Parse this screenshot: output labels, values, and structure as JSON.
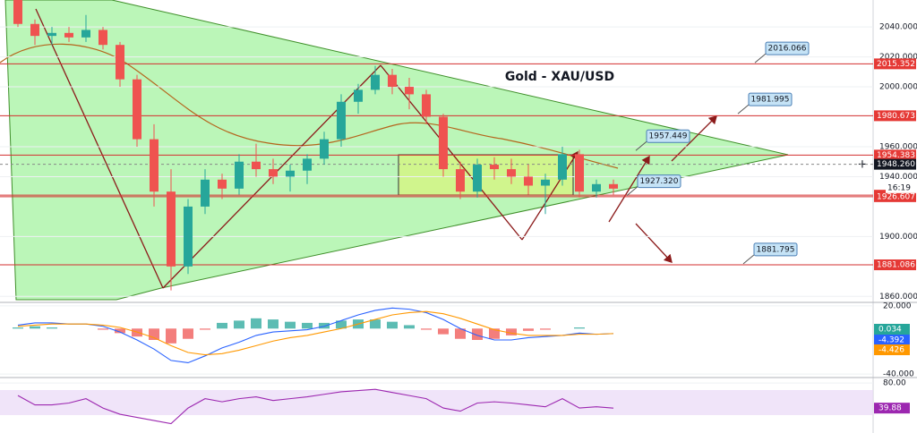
{
  "chart_data": {
    "type": "candlestick",
    "title": "Gold - XAU/USD",
    "ylim": [
      1856,
      2058
    ],
    "yticks": [
      {
        "value": 1860,
        "label": "1860.000"
      },
      {
        "value": 1900,
        "label": "1900.000"
      },
      {
        "value": 1940,
        "label": "1940.000"
      },
      {
        "value": 1960,
        "label": "1960.000"
      },
      {
        "value": 2000,
        "label": "2000.000"
      },
      {
        "value": 2020,
        "label": "2020.000"
      },
      {
        "value": 2040,
        "label": "2040.000"
      }
    ],
    "up_color": "#26a69a",
    "down_color": "#ef5350",
    "candles": {
      "open": [
        2058,
        2042,
        2034,
        2036,
        2033,
        2038,
        2028,
        2005,
        1965,
        1930,
        1880,
        1920,
        1938,
        1932,
        1950,
        1945,
        1940,
        1944,
        1952,
        1965,
        1990,
        1998,
        2008,
        2000,
        1995,
        1980,
        1945,
        1930,
        1948,
        1945,
        1940,
        1934,
        1938,
        1955,
        1930,
        1935
      ],
      "high": [
        2060,
        2045,
        2040,
        2040,
        2048,
        2040,
        2030,
        2008,
        1975,
        1945,
        1925,
        1945,
        1942,
        1955,
        1962,
        1952,
        1948,
        1955,
        1970,
        1995,
        2002,
        2014,
        2012,
        2006,
        1998,
        1982,
        1950,
        1952,
        1953,
        1952,
        1948,
        1942,
        1960,
        1958,
        1938,
        1938
      ],
      "low": [
        2040,
        2028,
        2028,
        2030,
        2030,
        2025,
        2000,
        1960,
        1920,
        1864,
        1875,
        1915,
        1925,
        1928,
        1940,
        1935,
        1930,
        1935,
        1948,
        1960,
        1982,
        1995,
        1995,
        1985,
        1975,
        1940,
        1925,
        1926,
        1938,
        1935,
        1928,
        1915,
        1934,
        1926,
        1926,
        1928
      ],
      "close": [
        2042,
        2034,
        2036,
        2033,
        2038,
        2028,
        2005,
        1965,
        1930,
        1880,
        1920,
        1938,
        1932,
        1950,
        1945,
        1940,
        1944,
        1952,
        1965,
        1990,
        1998,
        2008,
        2000,
        1995,
        1980,
        1945,
        1930,
        1948,
        1945,
        1940,
        1934,
        1938,
        1955,
        1930,
        1935,
        1932
      ]
    },
    "levels": [
      2015.352,
      1980.673,
      1954.383,
      1927.613,
      1926.607,
      1881.086
    ],
    "last_price": {
      "value": 1948.26,
      "label": "1948.260"
    },
    "countdown": "16:19",
    "callouts": [
      2016.066,
      1981.995,
      1957.449,
      {
        "value": 1927.32,
        "label": "1927.320"
      },
      1881.795
    ],
    "macd": {
      "ylim": [
        -43,
        23
      ],
      "yticks": [
        {
          "value": 20,
          "label": "20.000"
        },
        {
          "value": -40,
          "label": "-40.000"
        }
      ],
      "histogram": [
        1,
        2,
        1,
        0,
        0,
        -1,
        -4,
        -7,
        -10,
        -13,
        -9,
        -1,
        5,
        7,
        9,
        8,
        6,
        5,
        5,
        7,
        8,
        8,
        6,
        3,
        -1,
        -5,
        -9,
        -10,
        -9,
        -6,
        -2,
        -1,
        0,
        1,
        0,
        0
      ],
      "macd_line": [
        3,
        5,
        5,
        4,
        4,
        2,
        -3,
        -10,
        -18,
        -28,
        -30,
        -24,
        -17,
        -12,
        -6,
        -3,
        -2,
        -1,
        2,
        7,
        12,
        16,
        18,
        17,
        14,
        8,
        0,
        -6,
        -10,
        -10,
        -8,
        -7,
        -6,
        -4,
        -5,
        -4.4
      ],
      "signal": [
        2,
        3,
        4,
        4,
        4,
        3,
        1,
        -3,
        -8,
        -15,
        -21,
        -23,
        -22,
        -19,
        -15,
        -11,
        -8,
        -6,
        -3,
        0,
        4,
        8,
        12,
        14,
        15,
        13,
        9,
        4,
        -1,
        -4,
        -6,
        -6,
        -6,
        -5,
        -5,
        -4.4
      ],
      "last_histogram": 0.034,
      "last_macd": -4.392,
      "last_signal": -4.426
    },
    "rsi": {
      "ylim": [
        0,
        86
      ],
      "yticks": [
        {
          "value": 80,
          "label": "80.00"
        }
      ],
      "values": [
        60,
        45,
        45,
        48,
        55,
        40,
        30,
        25,
        20,
        15,
        40,
        55,
        50,
        55,
        58,
        52,
        55,
        58,
        62,
        66,
        68,
        70,
        65,
        60,
        55,
        40,
        35,
        48,
        50,
        48,
        45,
        42,
        55,
        40,
        42,
        39.88
      ],
      "last": 39.88
    }
  }
}
